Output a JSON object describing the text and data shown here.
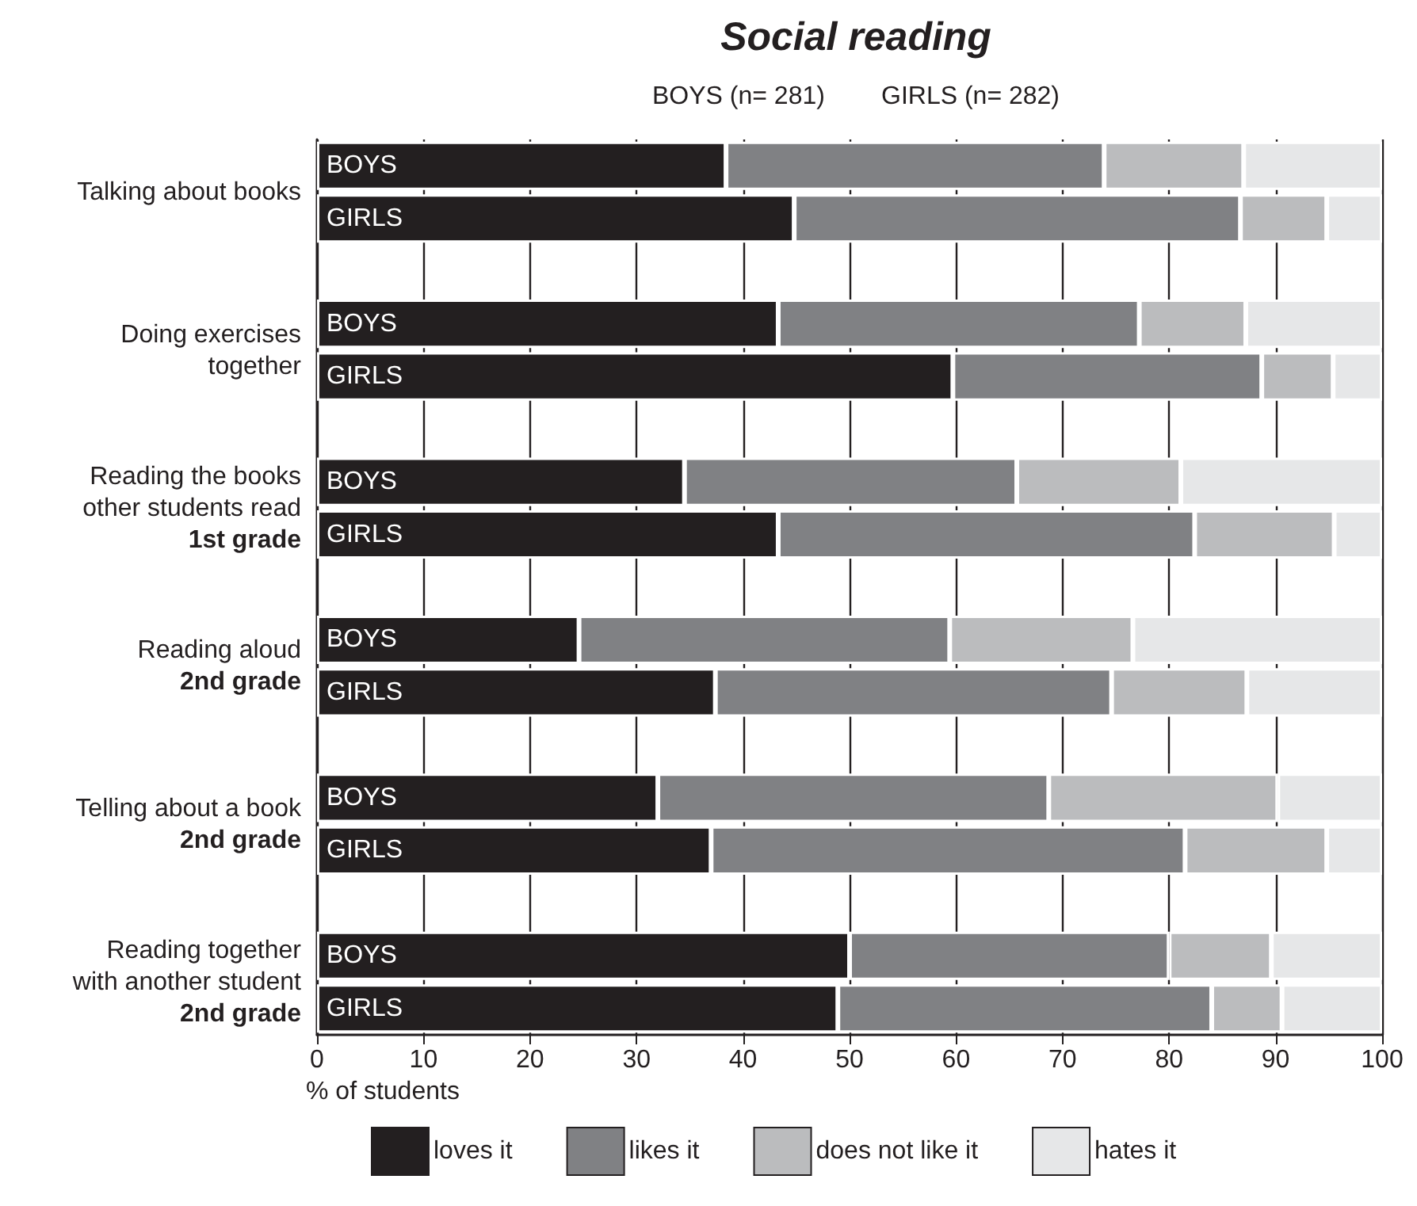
{
  "chart_data": {
    "type": "bar",
    "orientation": "horizontal",
    "stacked": true,
    "title": "Social reading",
    "subtitle": "BOYS (n= 281)        GIRLS (n= 282)",
    "xlabel": "% of students",
    "categories": [
      "Talking about books",
      null,
      null,
      "Doing exercises together",
      null,
      null,
      "Reading the books other students read\n1st grade",
      null,
      null,
      "Reading aloud\n2nd grade",
      null,
      null,
      "Telling about a book\n2nd grade",
      null,
      null,
      "Reading together with another student\n2nd grade",
      null
    ],
    "series": [
      {
        "name": "loves it",
        "color": "#231f20",
        "values": [
          38.4,
          44.8,
          null,
          43.3,
          59.7,
          null,
          34.5,
          43.3,
          null,
          24.6,
          37.4,
          null,
          32.0,
          37.0,
          null,
          50.0,
          48.9
        ],
        "value_labels": [
          "BOYS",
          "GIRLS",
          null,
          "BOYS",
          "GIRLS",
          null,
          "BOYS",
          "GIRLS",
          null,
          "BOYS",
          "GIRLS",
          null,
          "BOYS",
          "GIRLS",
          null,
          "BOYS",
          "GIRLS"
        ]
      },
      {
        "name": "likes it",
        "color": "#808184",
        "values": [
          35.5,
          41.9,
          null,
          33.9,
          29.0,
          null,
          31.2,
          39.1,
          null,
          34.8,
          37.2,
          null,
          36.7,
          44.5,
          null,
          30.0,
          35.1
        ]
      },
      {
        "name": "does not like it",
        "color": "#bbbcbe",
        "values": [
          13.1,
          8.1,
          null,
          10.0,
          6.7,
          null,
          15.4,
          13.1,
          null,
          17.2,
          12.7,
          null,
          21.5,
          13.3,
          null,
          9.6,
          6.6
        ]
      },
      {
        "name": "hates it",
        "color": "#e6e7e8",
        "values": [
          13.0,
          5.2,
          null,
          12.8,
          4.6,
          null,
          18.9,
          4.5,
          null,
          23.4,
          12.7,
          null,
          9.8,
          5.2,
          null,
          10.4,
          9.4
        ]
      }
    ],
    "xlim": [
      0,
      100
    ],
    "xticks": [
      0,
      10,
      20,
      30,
      40,
      50,
      60,
      70,
      80,
      90,
      100
    ],
    "grid": "x",
    "legend": "bottom"
  }
}
